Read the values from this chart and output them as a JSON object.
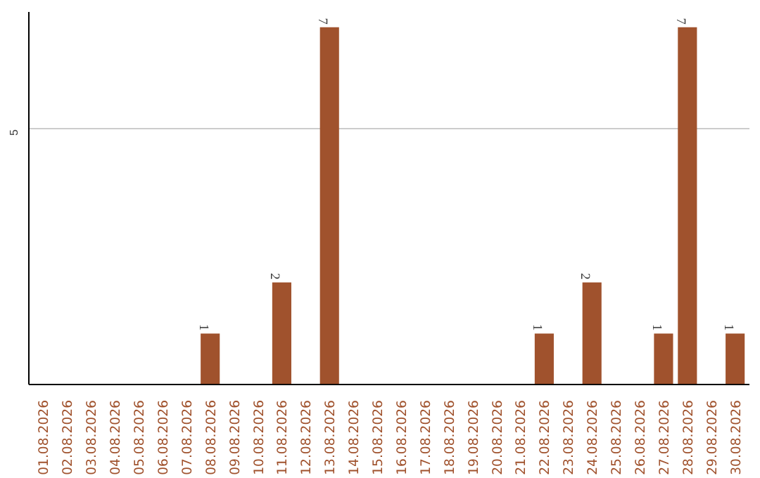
{
  "chart_data": {
    "type": "bar",
    "categories": [
      "01.08.2026",
      "02.08.2026",
      "03.08.2026",
      "04.08.2026",
      "05.08.2026",
      "06.08.2026",
      "07.08.2026",
      "08.08.2026",
      "09.08.2026",
      "10.08.2026",
      "11.08.2026",
      "12.08.2026",
      "13.08.2026",
      "14.08.2026",
      "15.08.2026",
      "16.08.2026",
      "17.08.2026",
      "18.08.2026",
      "19.08.2026",
      "20.08.2026",
      "21.08.2026",
      "22.08.2026",
      "23.08.2026",
      "24.08.2026",
      "25.08.2026",
      "26.08.2026",
      "27.08.2026",
      "28.08.2026",
      "29.08.2026",
      "30.08.2026"
    ],
    "values": [
      0,
      0,
      0,
      0,
      0,
      0,
      0,
      1,
      0,
      0,
      2,
      0,
      7,
      0,
      0,
      0,
      0,
      0,
      0,
      0,
      0,
      1,
      0,
      2,
      0,
      0,
      1,
      7,
      0,
      1
    ],
    "color": "#a0522d",
    "ylim": [
      0,
      7.3
    ],
    "yticks": [
      5
    ],
    "grid": "y",
    "value_labels": [
      null,
      null,
      null,
      null,
      null,
      null,
      null,
      "1",
      null,
      null,
      "2",
      null,
      "7",
      null,
      null,
      null,
      null,
      null,
      null,
      null,
      null,
      "1",
      null,
      "2",
      null,
      null,
      "1",
      "7",
      null,
      "1"
    ]
  }
}
